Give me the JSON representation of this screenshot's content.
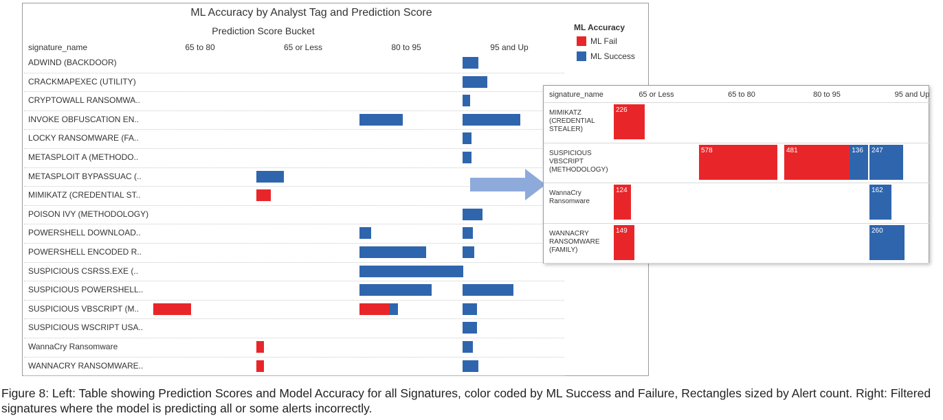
{
  "caption": "Figure 8: Left: Table showing Prediction Scores and Model Accuracy for all Signatures, color coded by ML Success and Failure, Rectangles sized by Alert count. Right: Filtered signatures where the model is predicting all or some alerts incorrectly.",
  "colors": {
    "fail": "#e8262a",
    "success": "#2f65ad",
    "arrow": "#8eaadb"
  },
  "chart_data": [
    {
      "type": "table",
      "title": "ML Accuracy by Analyst Tag and Prediction Score",
      "subtitle": "Prediction Score Bucket",
      "row_header": "signature_name",
      "columns": [
        "65 to 80",
        "65 or Less",
        "80 to 95",
        "95 and Up"
      ],
      "legend": {
        "title": "ML Accuracy",
        "position": "top-right",
        "items": [
          {
            "name": "ML Fail",
            "key": "fail"
          },
          {
            "name": "ML Success",
            "key": "success"
          }
        ]
      },
      "rows": [
        {
          "name": "ADWIND (BACKDOOR)",
          "cells": [
            [
              0,
              0
            ],
            [
              0,
              0
            ],
            [
              0,
              0
            ],
            [
              0,
              55
            ]
          ]
        },
        {
          "name": "CRACKMAPEXEC (UTILITY)",
          "cells": [
            [
              0,
              0
            ],
            [
              0,
              0
            ],
            [
              0,
              0
            ],
            [
              0,
              85
            ]
          ]
        },
        {
          "name": "CRYPTOWALL RANSOMWA..",
          "cells": [
            [
              0,
              0
            ],
            [
              0,
              0
            ],
            [
              0,
              0
            ],
            [
              0,
              25
            ]
          ]
        },
        {
          "name": "INVOKE OBFUSCATION EN..",
          "cells": [
            [
              0,
              0
            ],
            [
              0,
              0
            ],
            [
              0,
              150
            ],
            [
              0,
              200
            ]
          ]
        },
        {
          "name": "LOCKY RANSOMWARE (FA..",
          "cells": [
            [
              0,
              0
            ],
            [
              0,
              0
            ],
            [
              0,
              0
            ],
            [
              0,
              30
            ]
          ]
        },
        {
          "name": "METASPLOIT A (METHODO..",
          "cells": [
            [
              0,
              0
            ],
            [
              0,
              0
            ],
            [
              0,
              0
            ],
            [
              0,
              30
            ]
          ]
        },
        {
          "name": "METASPLOIT BYPASSUAC (..",
          "cells": [
            [
              0,
              0
            ],
            [
              0,
              95
            ],
            [
              0,
              0
            ],
            [
              0,
              0
            ]
          ]
        },
        {
          "name": "MIMIKATZ (CREDENTIAL ST..",
          "cells": [
            [
              0,
              0
            ],
            [
              50,
              0
            ],
            [
              0,
              0
            ],
            [
              0,
              0
            ]
          ]
        },
        {
          "name": "POISON IVY (METHODOLOGY)",
          "cells": [
            [
              0,
              0
            ],
            [
              0,
              0
            ],
            [
              0,
              0
            ],
            [
              0,
              70
            ]
          ]
        },
        {
          "name": "POWERSHELL DOWNLOAD..",
          "cells": [
            [
              0,
              0
            ],
            [
              0,
              0
            ],
            [
              0,
              40
            ],
            [
              0,
              35
            ]
          ]
        },
        {
          "name": "POWERSHELL ENCODED R..",
          "cells": [
            [
              0,
              0
            ],
            [
              0,
              0
            ],
            [
              0,
              230
            ],
            [
              0,
              40
            ]
          ]
        },
        {
          "name": "SUSPICIOUS CSRSS.EXE (..",
          "cells": [
            [
              0,
              0
            ],
            [
              0,
              0
            ],
            [
              0,
              360
            ],
            [
              0,
              0
            ]
          ]
        },
        {
          "name": "SUSPICIOUS POWERSHELL..",
          "cells": [
            [
              0,
              0
            ],
            [
              0,
              0
            ],
            [
              0,
              250
            ],
            [
              0,
              175
            ]
          ]
        },
        {
          "name": "SUSPICIOUS VBSCRIPT (M..",
          "cells": [
            [
              130,
              0
            ],
            [
              0,
              0
            ],
            [
              105,
              28
            ],
            [
              0,
              50
            ]
          ]
        },
        {
          "name": "SUSPICIOUS WSCRIPT USA..",
          "cells": [
            [
              0,
              0
            ],
            [
              0,
              0
            ],
            [
              0,
              0
            ],
            [
              0,
              50
            ]
          ]
        },
        {
          "name": "WannaCry Ransomware",
          "cells": [
            [
              0,
              0
            ],
            [
              25,
              0
            ],
            [
              0,
              0
            ],
            [
              0,
              35
            ]
          ]
        },
        {
          "name": "WANNACRY RANSOMWARE..",
          "cells": [
            [
              0,
              0
            ],
            [
              25,
              0
            ],
            [
              0,
              0
            ],
            [
              0,
              55
            ]
          ]
        }
      ]
    },
    {
      "type": "table",
      "row_header": "signature_name",
      "columns": [
        "65 or Less",
        "65 to 80",
        "80 to 95",
        "95 and Up"
      ],
      "rows": [
        {
          "name": "MIMIKATZ (CREDENTIAL STEALER)",
          "cells": [
            [
              226,
              0
            ],
            [
              0,
              0
            ],
            [
              0,
              0
            ],
            [
              0,
              0
            ]
          ]
        },
        {
          "name": "SUSPICIOUS VBSCRIPT (METHODOLOGY)",
          "cells": [
            [
              0,
              0
            ],
            [
              578,
              0
            ],
            [
              481,
              136
            ],
            [
              0,
              247
            ]
          ]
        },
        {
          "name": "WannaCry Ransomware",
          "cells": [
            [
              124,
              0
            ],
            [
              0,
              0
            ],
            [
              0,
              0
            ],
            [
              0,
              162
            ]
          ]
        },
        {
          "name": "WANNACRY RANSOMWARE (FAMILY)",
          "cells": [
            [
              149,
              0
            ],
            [
              0,
              0
            ],
            [
              0,
              0
            ],
            [
              0,
              260
            ]
          ]
        }
      ]
    }
  ]
}
